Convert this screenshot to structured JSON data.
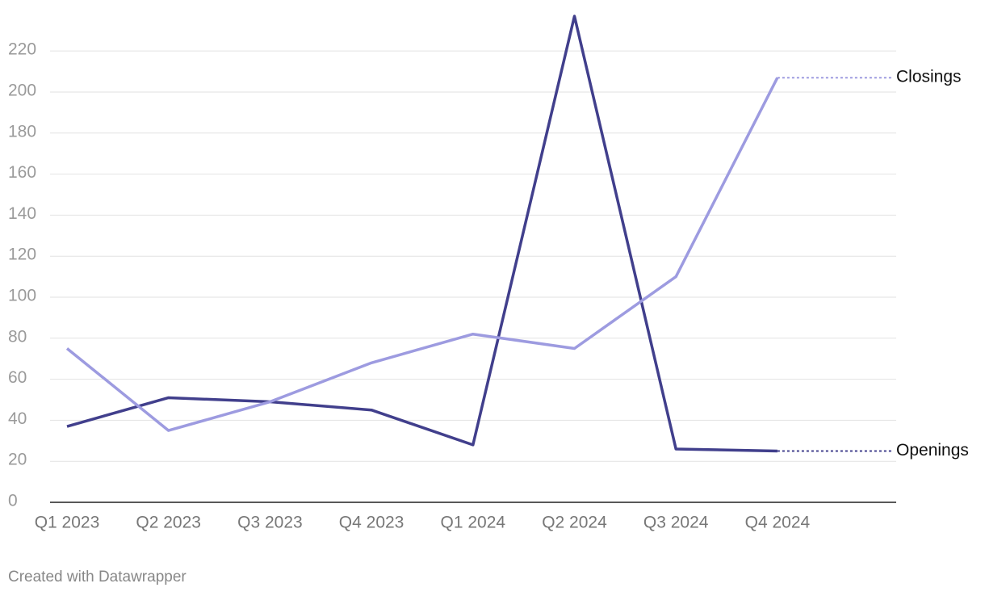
{
  "chart_data": {
    "type": "line",
    "categories": [
      "Q1 2023",
      "Q2 2023",
      "Q3 2023",
      "Q4 2023",
      "Q1 2024",
      "Q2 2024",
      "Q3 2024",
      "Q4 2024"
    ],
    "series": [
      {
        "name": "Openings",
        "color": "#413f8c",
        "values": [
          37,
          51,
          49,
          45,
          28,
          237,
          26,
          25
        ]
      },
      {
        "name": "Closings",
        "color": "#9d9be0",
        "values": [
          75,
          35,
          49,
          68,
          82,
          75,
          110,
          207
        ]
      }
    ],
    "ylim": [
      0,
      237
    ],
    "yticks": [
      0,
      20,
      40,
      60,
      80,
      100,
      120,
      140,
      160,
      180,
      200,
      220
    ],
    "grid": true,
    "footer": "Created with Datawrapper"
  }
}
